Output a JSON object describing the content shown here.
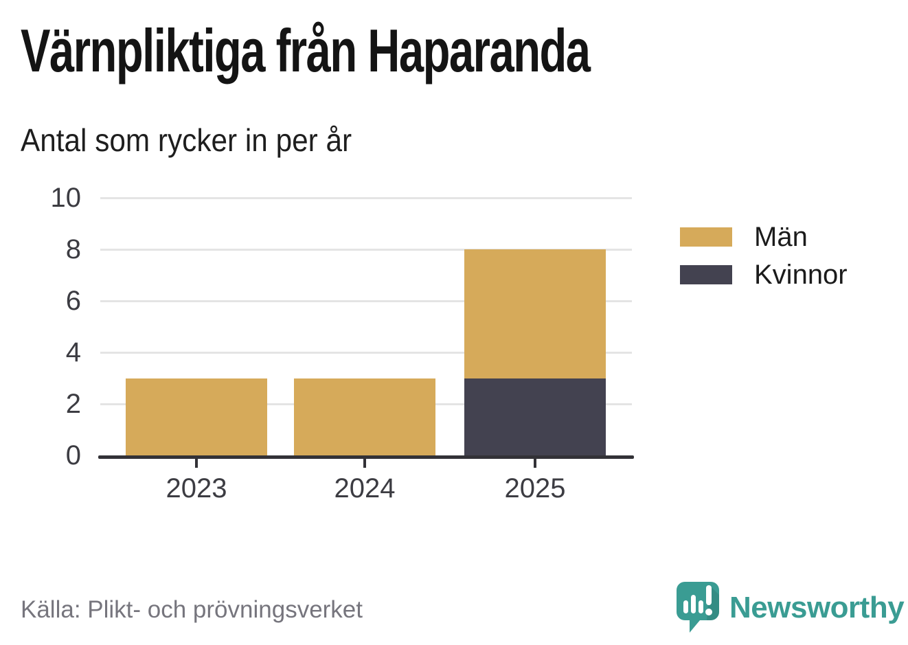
{
  "title": "Värnpliktiga från Haparanda",
  "subtitle": "Antal som rycker in per år",
  "source": "Källa: Plikt- och prövningsverket",
  "brand": {
    "name": "Newsworthy",
    "color": "#3a9c93",
    "icon": "newsworthy-speech-bubble-chart-icon"
  },
  "colors": {
    "men": "#d6aa5a",
    "women": "#434250",
    "axis": "#333237",
    "grid": "#e4e4e4",
    "tick_label": "#3c3c42"
  },
  "legend": [
    {
      "label": "Män",
      "color": "#d6aa5a"
    },
    {
      "label": "Kvinnor",
      "color": "#434250"
    }
  ],
  "chart_data": {
    "type": "bar",
    "stacked": true,
    "title": "Värnpliktiga från Haparanda",
    "subtitle": "Antal som rycker in per år",
    "categories": [
      "2023",
      "2024",
      "2025"
    ],
    "series": [
      {
        "name": "Män",
        "values": [
          3,
          3,
          5
        ],
        "color": "#d6aa5a"
      },
      {
        "name": "Kvinnor",
        "values": [
          0,
          0,
          3
        ],
        "color": "#434250"
      }
    ],
    "totals": [
      3,
      3,
      8
    ],
    "xlabel": "",
    "ylabel": "",
    "ylim": [
      0,
      10
    ],
    "yticks": [
      0,
      2,
      4,
      6,
      8,
      10
    ],
    "grid": true,
    "legend_position": "right",
    "source": "Källa: Plikt- och prövningsverket"
  }
}
